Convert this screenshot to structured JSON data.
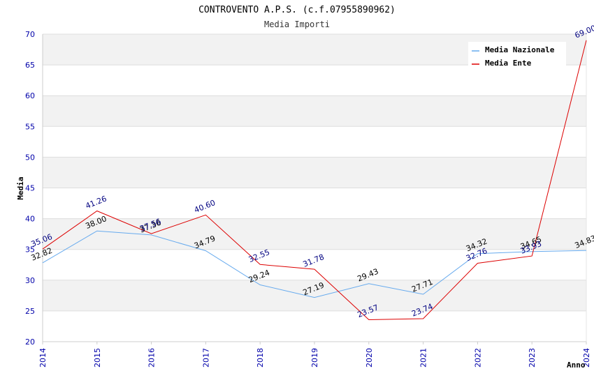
{
  "chart_data": {
    "type": "line",
    "title": "CONTROVENTO A.P.S. (c.f.07955890962)",
    "subtitle": "Media Importi",
    "xlabel": "Anno",
    "ylabel": "Media",
    "ylim": [
      20,
      70
    ],
    "yticks": [
      "20",
      "25",
      "30",
      "35",
      "40",
      "45",
      "50",
      "55",
      "60",
      "65",
      "70"
    ],
    "x": [
      "2014",
      "2015",
      "2016",
      "2017",
      "2018",
      "2019",
      "2020",
      "2021",
      "2022",
      "2023",
      "2024"
    ],
    "grid": true,
    "legend_position": "top-right",
    "series": [
      {
        "name": "Media Nazionale",
        "color": "#66aaee",
        "label_color": "#000000",
        "values": [
          32.82,
          38.0,
          37.36,
          34.79,
          29.24,
          27.19,
          29.43,
          27.71,
          34.32,
          34.65,
          34.83
        ],
        "labels": [
          "32.82",
          "38.00",
          "37.36",
          "34.79",
          "29.24",
          "27.19",
          "29.43",
          "27.71",
          "34.32",
          "34.65",
          "34.83"
        ]
      },
      {
        "name": "Media Ente",
        "color": "#dd0000",
        "label_color": "#000080",
        "values": [
          35.06,
          41.26,
          37.56,
          40.6,
          32.55,
          31.78,
          23.57,
          23.74,
          32.76,
          33.93,
          69.0
        ],
        "labels": [
          "35.06",
          "41.26",
          "37.56",
          "40.60",
          "32.55",
          "31.78",
          "23.57",
          "23.74",
          "32.76",
          "33.93",
          "69.00"
        ]
      }
    ]
  }
}
